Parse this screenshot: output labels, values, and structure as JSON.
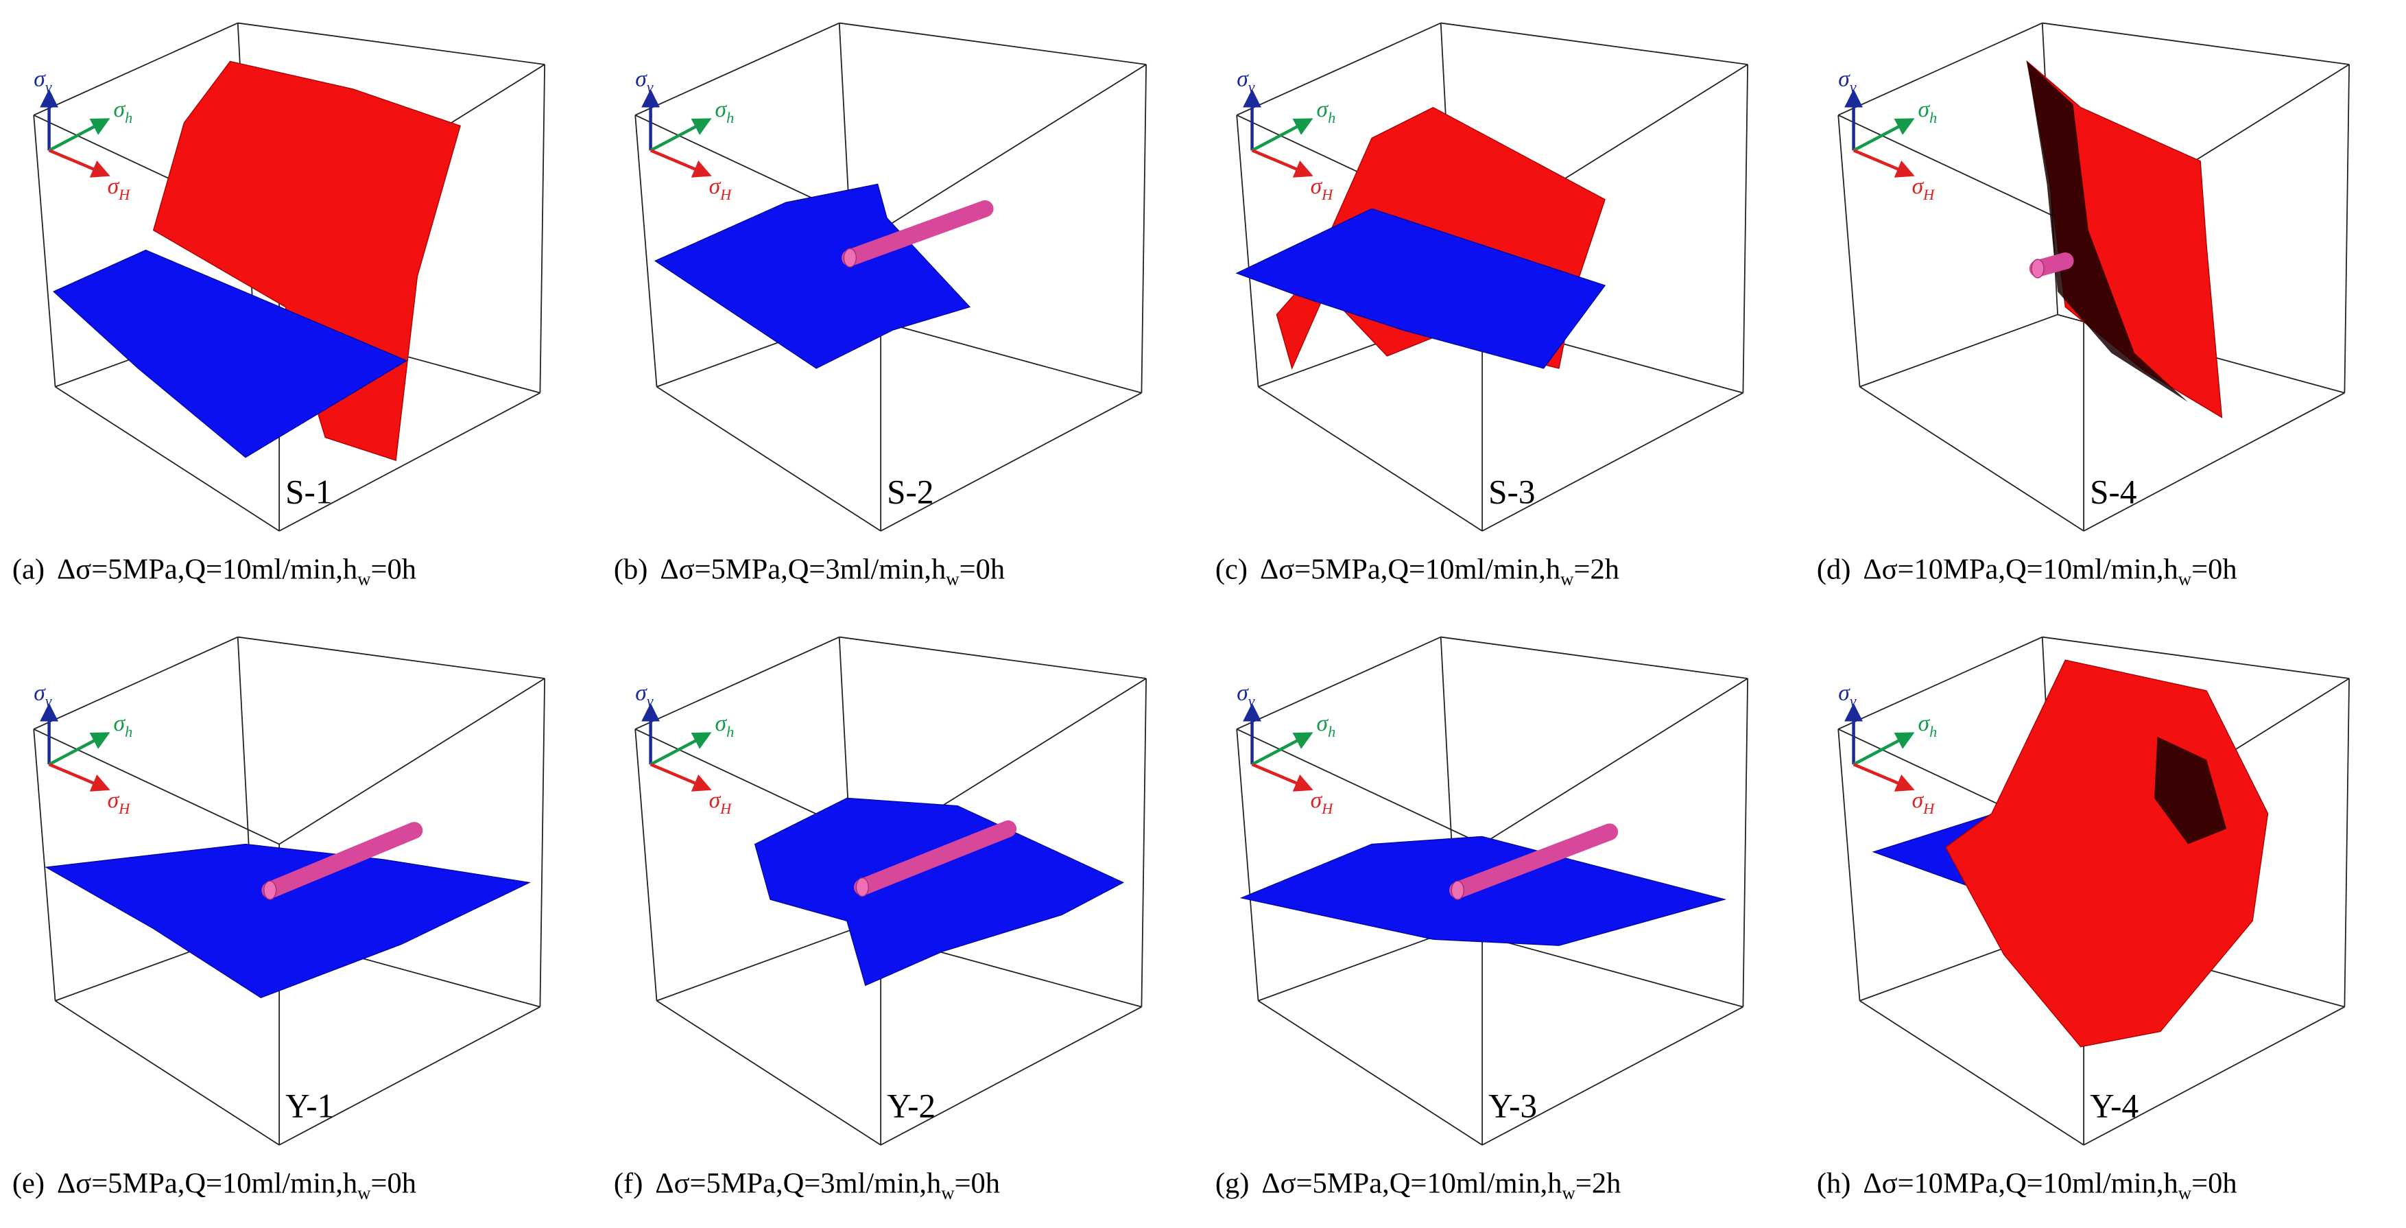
{
  "axes": {
    "sigma": "σ",
    "v": "v",
    "h": "h",
    "H": "H"
  },
  "panels": [
    {
      "label": "S-1",
      "caption": {
        "letter": "(a)",
        "text": "Δσ=5MPa,Q=10ml/min,h",
        "sub": "w",
        "end": "=0h"
      }
    },
    {
      "label": "S-2",
      "caption": {
        "letter": "(b)",
        "text": "Δσ=5MPa,Q=3ml/min,h",
        "sub": "w",
        "end": "=0h"
      }
    },
    {
      "label": "S-3",
      "caption": {
        "letter": "(c)",
        "text": "Δσ=5MPa,Q=10ml/min,h",
        "sub": "w",
        "end": "=2h"
      }
    },
    {
      "label": "S-4",
      "caption": {
        "letter": "(d)",
        "text": "Δσ=10MPa,Q=10ml/min,h",
        "sub": "w",
        "end": "=0h"
      }
    },
    {
      "label": "Y-1",
      "caption": {
        "letter": "(e)",
        "text": "Δσ=5MPa,Q=10ml/min,h",
        "sub": "w",
        "end": "=0h"
      }
    },
    {
      "label": "Y-2",
      "caption": {
        "letter": "(f)",
        "text": "Δσ=5MPa,Q=3ml/min,h",
        "sub": "w",
        "end": "=0h"
      }
    },
    {
      "label": "Y-3",
      "caption": {
        "letter": "(g)",
        "text": "Δσ=5MPa,Q=10ml/min,h",
        "sub": "w",
        "end": "=2h"
      }
    },
    {
      "label": "Y-4",
      "caption": {
        "letter": "(h)",
        "text": "Δσ=10MPa,Q=10ml/min,h",
        "sub": "w",
        "end": "=0h"
      }
    }
  ]
}
